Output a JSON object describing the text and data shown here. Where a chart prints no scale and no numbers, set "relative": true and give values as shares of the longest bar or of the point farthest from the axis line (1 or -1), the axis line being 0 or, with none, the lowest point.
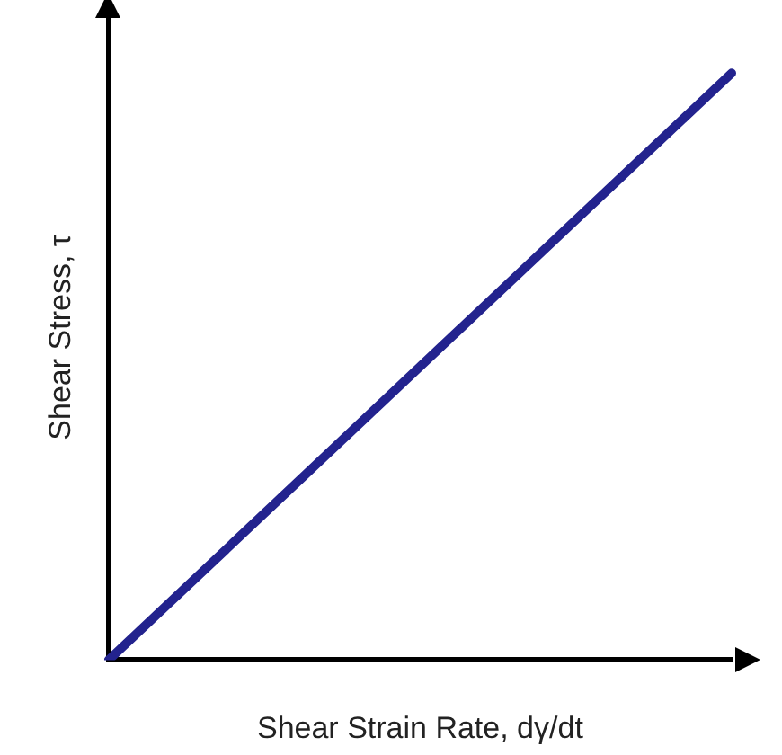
{
  "chart_data": {
    "type": "line",
    "relative": true,
    "xlabel": "Shear Strain Rate, dγ/dt",
    "ylabel": "Shear Stress, τ",
    "categories": [
      null,
      null
    ],
    "series": [
      {
        "color": "#23238e",
        "values": [
          0,
          1
        ]
      }
    ],
    "grid": false,
    "legend": false,
    "marker": "none",
    "line_style": "solid"
  }
}
